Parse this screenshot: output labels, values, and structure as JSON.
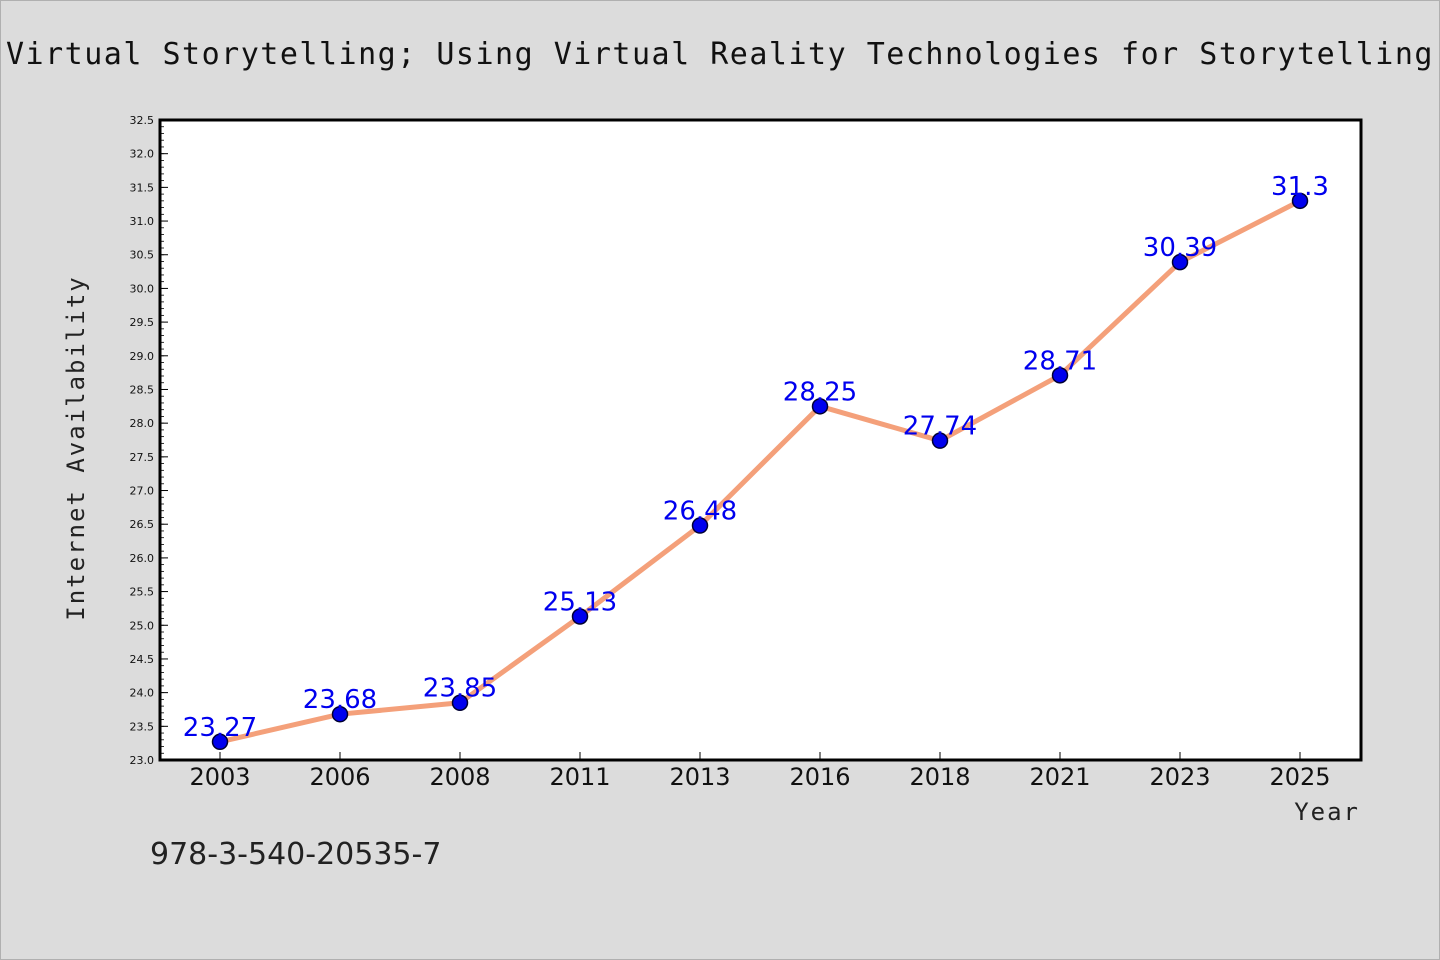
{
  "chart_data": {
    "type": "line",
    "title": "Virtual Storytelling; Using Virtual Reality Technologies for Storytelling",
    "xlabel": "Year",
    "ylabel": "Internet Availability",
    "categories": [
      "2003",
      "2006",
      "2008",
      "2011",
      "2013",
      "2016",
      "2018",
      "2021",
      "2023",
      "2025"
    ],
    "values": [
      23.27,
      23.68,
      23.85,
      25.13,
      26.48,
      28.25,
      27.74,
      28.71,
      30.39,
      31.3
    ],
    "data_labels": [
      "23.27",
      "23.68",
      "23.85",
      "25.13",
      "26.48",
      "28.25",
      "27.74",
      "28.71",
      "30.39",
      "31.3"
    ],
    "ylim": [
      23.0,
      32.5
    ],
    "yticks": [
      "23.0",
      "23.5",
      "24.0",
      "24.5",
      "25.0",
      "25.5",
      "26.0",
      "26.5",
      "27.0",
      "27.5",
      "28.0",
      "28.5",
      "29.0",
      "29.5",
      "30.0",
      "30.5",
      "31.0",
      "31.5",
      "32.0",
      "32.5"
    ],
    "grid": false,
    "legend": "none",
    "colors": {
      "line": "#f4a07a",
      "marker": "#0000ee",
      "marker_edge": "#000033",
      "data_label": "#0000ee",
      "background": "#dcdcdc",
      "plot_background": "#ffffff"
    }
  },
  "footer_text": "978-3-540-20535-7"
}
